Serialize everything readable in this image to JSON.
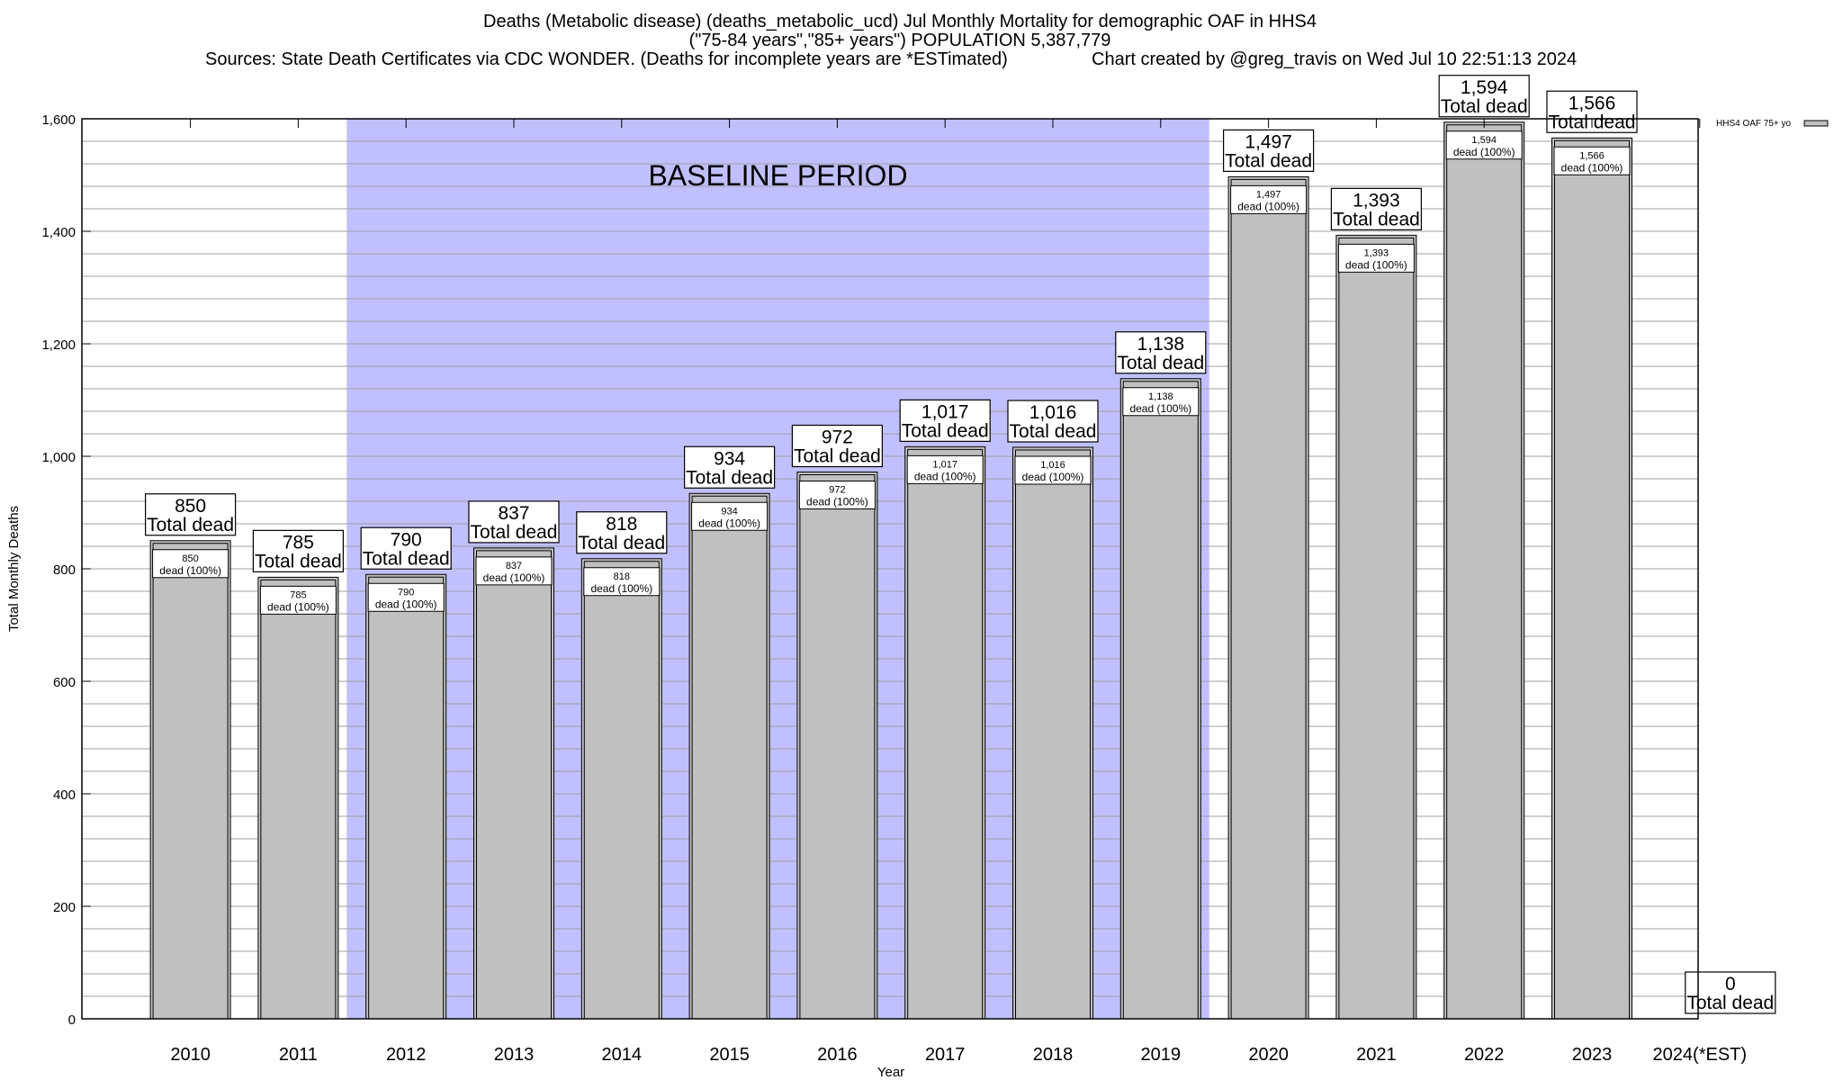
{
  "chart_data": {
    "type": "bar",
    "title_lines": [
      "Deaths (Metabolic disease) (deaths_metabolic_ucd) Jul Monthly Mortality for demographic OAF in HHS4",
      "(\"75-84 years\",\"85+ years\") POPULATION 5,387,779"
    ],
    "sources": "Sources: State Death Certificates via CDC WONDER. (Deaths for incomplete years are *ESTimated)",
    "credit": "Chart created by @greg_travis on Wed Jul 10 22:51:13 2024",
    "xlabel": "Year",
    "ylabel": "Total Monthly Deaths",
    "ylim": [
      0,
      1600
    ],
    "yticks": [
      0,
      200,
      400,
      600,
      800,
      1000,
      1200,
      1400,
      1600
    ],
    "ytick_labels": [
      "0",
      "200",
      "400",
      "600",
      "800",
      "1,000",
      "1,200",
      "1,400",
      "1,600"
    ],
    "minor_grid_step": 40,
    "categories": [
      "2010",
      "2011",
      "2012",
      "2013",
      "2014",
      "2015",
      "2016",
      "2017",
      "2018",
      "2019",
      "2020",
      "2021",
      "2022",
      "2023",
      "2024(*EST)"
    ],
    "values": [
      850,
      785,
      790,
      837,
      818,
      934,
      972,
      1017,
      1016,
      1138,
      1497,
      1393,
      1594,
      1566,
      0
    ],
    "value_labels": [
      "850",
      "785",
      "790",
      "837",
      "818",
      "934",
      "972",
      "1,017",
      "1,016",
      "1,138",
      "1,497",
      "1,393",
      "1,594",
      "1,566",
      "0"
    ],
    "total_label": "Total dead",
    "inner_label": "dead (100%)",
    "baseline": {
      "label": "BASELINE PERIOD",
      "from": "2012",
      "to": "2019",
      "color": "#c0c0ff"
    },
    "legend": {
      "label": "HHS4 OAF 75+ yo",
      "position": "right"
    },
    "bar_color": "#c0c0c0"
  }
}
